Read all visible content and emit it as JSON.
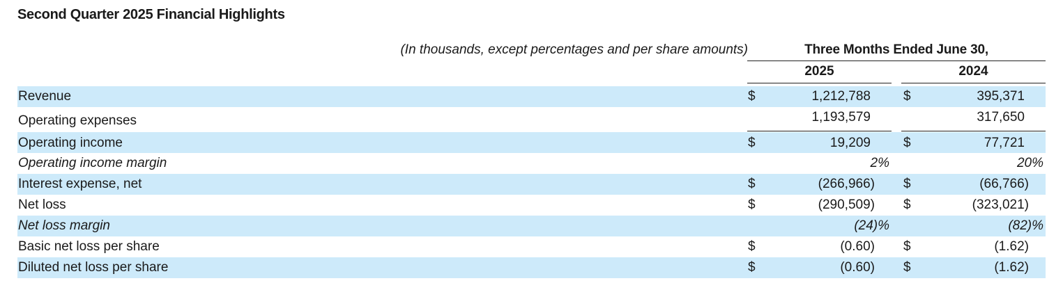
{
  "title": "Second Quarter 2025 Financial Highlights",
  "units_note": "(In thousands, except percentages and per share amounts)",
  "period_header": "Three Months Ended June 30,",
  "years": [
    "2025",
    "2024"
  ],
  "rows": [
    {
      "label": "Revenue",
      "currency": "$",
      "v2025": "1,212,788",
      "v2024": "395,371"
    },
    {
      "label": "Operating expenses",
      "currency": "",
      "v2025": "1,193,579",
      "v2024": "317,650"
    },
    {
      "label": "Operating income",
      "currency": "$",
      "v2025": "19,209",
      "v2024": "77,721"
    },
    {
      "label": "Operating income margin",
      "currency": "",
      "v2025": "2%",
      "v2024": "20%"
    },
    {
      "label": "Interest expense, net",
      "currency": "$",
      "v2025": "(266,966)",
      "v2024": "(66,766)"
    },
    {
      "label": "Net loss",
      "currency": "$",
      "v2025": "(290,509)",
      "v2024": "(323,021)"
    },
    {
      "label": "Net loss margin",
      "currency": "",
      "v2025": "(24)%",
      "v2024": "(82)%"
    },
    {
      "label": "Basic net loss per share",
      "currency": "$",
      "v2025": "(0.60)",
      "v2024": "(1.62)"
    },
    {
      "label": "Diluted net loss per share",
      "currency": "$",
      "v2025": "(0.60)",
      "v2024": "(1.62)"
    }
  ]
}
